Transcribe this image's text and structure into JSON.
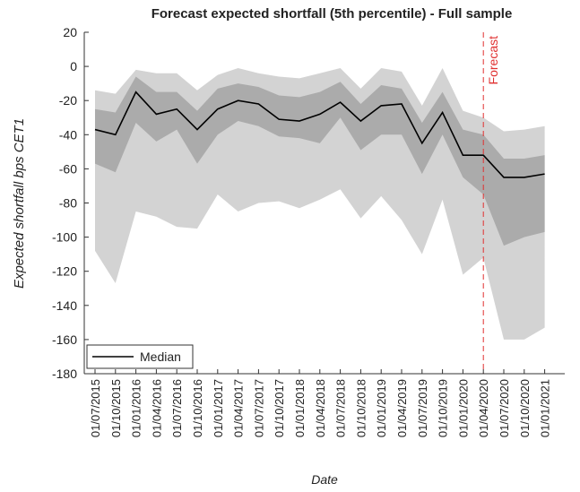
{
  "chart_data": {
    "type": "fan",
    "title": "Forecast expected shortfall (5th percentile) -  Full sample",
    "y_label": "Expected shortfall bps CET1",
    "x_label": "Date",
    "categories": [
      "01/07/2015",
      "01/10/2015",
      "01/01/2016",
      "01/04/2016",
      "01/07/2016",
      "01/10/2016",
      "01/01/2017",
      "01/04/2017",
      "01/07/2017",
      "01/10/2017",
      "01/01/2018",
      "01/04/2018",
      "01/07/2018",
      "01/10/2018",
      "01/01/2019",
      "01/04/2019",
      "01/07/2019",
      "01/10/2019",
      "01/01/2020",
      "01/04/2020",
      "01/07/2020",
      "01/10/2020",
      "01/01/2021"
    ],
    "bands": [
      {
        "color": "#d3d3d3",
        "upper": [
          -14,
          -16,
          -2,
          -4,
          -4,
          -14,
          -5,
          -1,
          -4,
          -6,
          -7,
          -4,
          -1,
          -13,
          -1,
          -3,
          -23,
          -1,
          -26,
          -30,
          -38,
          -37,
          -35
        ],
        "lower": [
          -108,
          -127,
          -85,
          -88,
          -94,
          -95,
          -75,
          -85,
          -80,
          -79,
          -83,
          -78,
          -72,
          -89,
          -76,
          -90,
          -110,
          -78,
          -122,
          -112,
          -160,
          -160,
          -153
        ]
      },
      {
        "color": "#ababab",
        "upper": [
          -25,
          -27,
          -6,
          -15,
          -15,
          -26,
          -13,
          -10,
          -12,
          -17,
          -18,
          -15,
          -9,
          -22,
          -11,
          -13,
          -33,
          -15,
          -37,
          -40,
          -54,
          -54,
          -52
        ],
        "lower": [
          -57,
          -62,
          -33,
          -44,
          -37,
          -57,
          -40,
          -32,
          -35,
          -41,
          -42,
          -45,
          -30,
          -49,
          -40,
          -40,
          -63,
          -40,
          -65,
          -75,
          -105,
          -100,
          -97
        ]
      }
    ],
    "series": [
      {
        "name": "Median",
        "color": "#000000",
        "values": [
          -37,
          -40,
          -15,
          -28,
          -25,
          -37,
          -25,
          -20,
          -22,
          -31,
          -32,
          -28,
          -21,
          -32,
          -23,
          -22,
          -45,
          -27,
          -52,
          -52,
          -65,
          -65,
          -63
        ]
      }
    ],
    "forecast_line": {
      "x": "01/04/2020",
      "label": "Forecast",
      "color": "#e03030"
    },
    "ylim": [
      -180,
      20
    ],
    "yticks": [
      -180,
      -160,
      -140,
      -120,
      -100,
      -80,
      -60,
      -40,
      -20,
      0,
      20
    ],
    "legend": "lower left"
  }
}
